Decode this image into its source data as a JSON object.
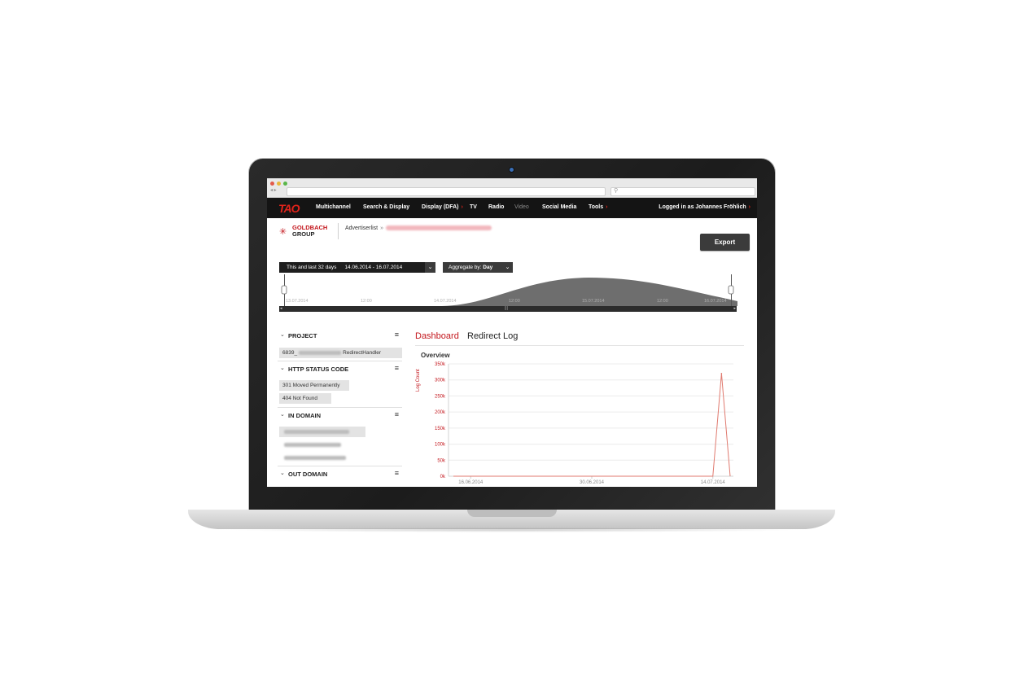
{
  "browser": {
    "url": "",
    "search": ""
  },
  "topnav": {
    "logo": "TAO",
    "items": [
      {
        "label": "Multichannel",
        "caret": false,
        "muted": false
      },
      {
        "label": "Search & Display",
        "caret": false,
        "muted": false
      },
      {
        "label": "Display (DFA)",
        "caret": true,
        "muted": false
      },
      {
        "label": "TV",
        "caret": false,
        "muted": false
      },
      {
        "label": "Radio",
        "caret": false,
        "muted": false
      },
      {
        "label": "Video",
        "caret": false,
        "muted": true
      },
      {
        "label": "Social Media",
        "caret": false,
        "muted": false
      },
      {
        "label": "Tools",
        "caret": true,
        "muted": false
      }
    ],
    "login": "Logged in as Johannes Fröhlich"
  },
  "brand": {
    "line1": "GOLDBACH",
    "line2": "GROUP"
  },
  "breadcrumb": {
    "first": "Advertiserlist",
    "separator": "»"
  },
  "export_label": "Export",
  "range": {
    "label": "This and last 32 days",
    "dates": "14.06.2014 - 16.07.2014",
    "aggregate_label": "Aggregate by:",
    "aggregate_value": "Day"
  },
  "timeline": {
    "labels": [
      "13.07.2014",
      "12:00",
      "14.07.2014",
      "12:00",
      "15.07.2014",
      "12:00",
      "16.07.2014"
    ]
  },
  "filters": [
    {
      "title": "PROJECT",
      "chips": [
        {
          "text": "6839_",
          "suffix": "RedirectHandler",
          "blurred": true
        }
      ]
    },
    {
      "title": "HTTP STATUS CODE",
      "chips": [
        {
          "text": "301 Moved Permanently"
        },
        {
          "text": "404 Not Found"
        }
      ]
    },
    {
      "title": "IN DOMAIN",
      "chips": [
        {
          "text": "",
          "blurred": true
        },
        {
          "text": "",
          "blurred": true
        },
        {
          "text": "",
          "blurred": true
        }
      ]
    },
    {
      "title": "OUT DOMAIN",
      "chips": []
    }
  ],
  "tabs": [
    {
      "label": "Dashboard",
      "active": true
    },
    {
      "label": "Redirect Log",
      "active": false
    }
  ],
  "overview_title": "Overview",
  "colors": {
    "accent": "#c3161c",
    "nav_bg": "#141414",
    "chart_line": "#e07a6f"
  },
  "chart_data": {
    "type": "line",
    "ylabel": "Log Count",
    "y_ticks": [
      "0k",
      "50k",
      "100k",
      "150k",
      "200k",
      "250k",
      "300k",
      "350k"
    ],
    "ylim": [
      0,
      350000
    ],
    "x_tick_labels": [
      "16.06.2014",
      "30.06.2014",
      "14.07.2014"
    ],
    "series": [
      {
        "x": [
          "14.06.2014",
          "15.06.2014",
          "16.06.2014",
          "17.06.2014",
          "18.06.2014",
          "19.06.2014",
          "20.06.2014",
          "21.06.2014",
          "22.06.2014",
          "23.06.2014",
          "24.06.2014",
          "25.06.2014",
          "26.06.2014",
          "27.06.2014",
          "28.06.2014",
          "29.06.2014",
          "30.06.2014",
          "01.07.2014",
          "02.07.2014",
          "03.07.2014",
          "04.07.2014",
          "05.07.2014",
          "06.07.2014",
          "07.07.2014",
          "08.07.2014",
          "09.07.2014",
          "10.07.2014",
          "11.07.2014",
          "12.07.2014",
          "13.07.2014",
          "14.07.2014",
          "15.07.2014",
          "16.07.2014"
        ],
        "values": [
          0,
          0,
          0,
          0,
          0,
          0,
          0,
          0,
          0,
          0,
          0,
          0,
          0,
          0,
          0,
          0,
          0,
          0,
          0,
          0,
          0,
          0,
          0,
          0,
          0,
          0,
          0,
          0,
          0,
          0,
          0,
          320000,
          0
        ]
      }
    ]
  }
}
